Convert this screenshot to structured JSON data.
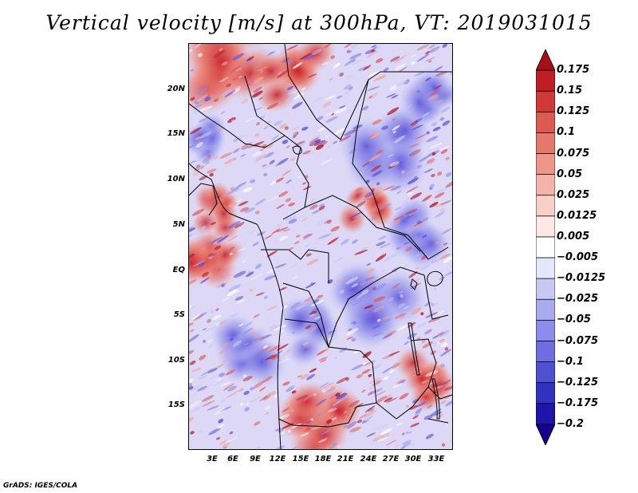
{
  "title": "Vertical velocity [m/s] at 300hPa, VT: 2019031015",
  "footer": "GrADS: IGES/COLA",
  "map": {
    "lat_labels": [
      "20N",
      "15N",
      "10N",
      "5N",
      "EQ",
      "5S",
      "10S",
      "15S"
    ],
    "lon_labels": [
      "3E",
      "6E",
      "9E",
      "12E",
      "15E",
      "18E",
      "21E",
      "24E",
      "27E",
      "30E",
      "33E"
    ],
    "colors": {
      "positive_strong": "#b2182b",
      "positive_weak": "#f4a582",
      "neutral": "#f7f7f7",
      "negative_weak": "#a8a8f0",
      "negative_strong": "#2a1fb0"
    }
  },
  "colorbar": {
    "levels": [
      "0.175",
      "0.15",
      "0.125",
      "0.1",
      "0.075",
      "0.05",
      "0.025",
      "0.0125",
      "0.005",
      "−0.005",
      "−0.0125",
      "−0.025",
      "−0.05",
      "−0.075",
      "−0.1",
      "−0.125",
      "−0.175",
      "−0.2"
    ],
    "segment_colors": [
      "#a50f15",
      "#be1e24",
      "#cf3a38",
      "#dc5a52",
      "#e6786c",
      "#ee968a",
      "#f4b4aa",
      "#f8d0c8",
      "#fbe8e4",
      "#ffffff",
      "#e6e6fa",
      "#c8c8f5",
      "#aaaaf0",
      "#8c8ceb",
      "#6e6ee0",
      "#5050d2",
      "#3232c0",
      "#1e14aa",
      "#14008c"
    ]
  }
}
